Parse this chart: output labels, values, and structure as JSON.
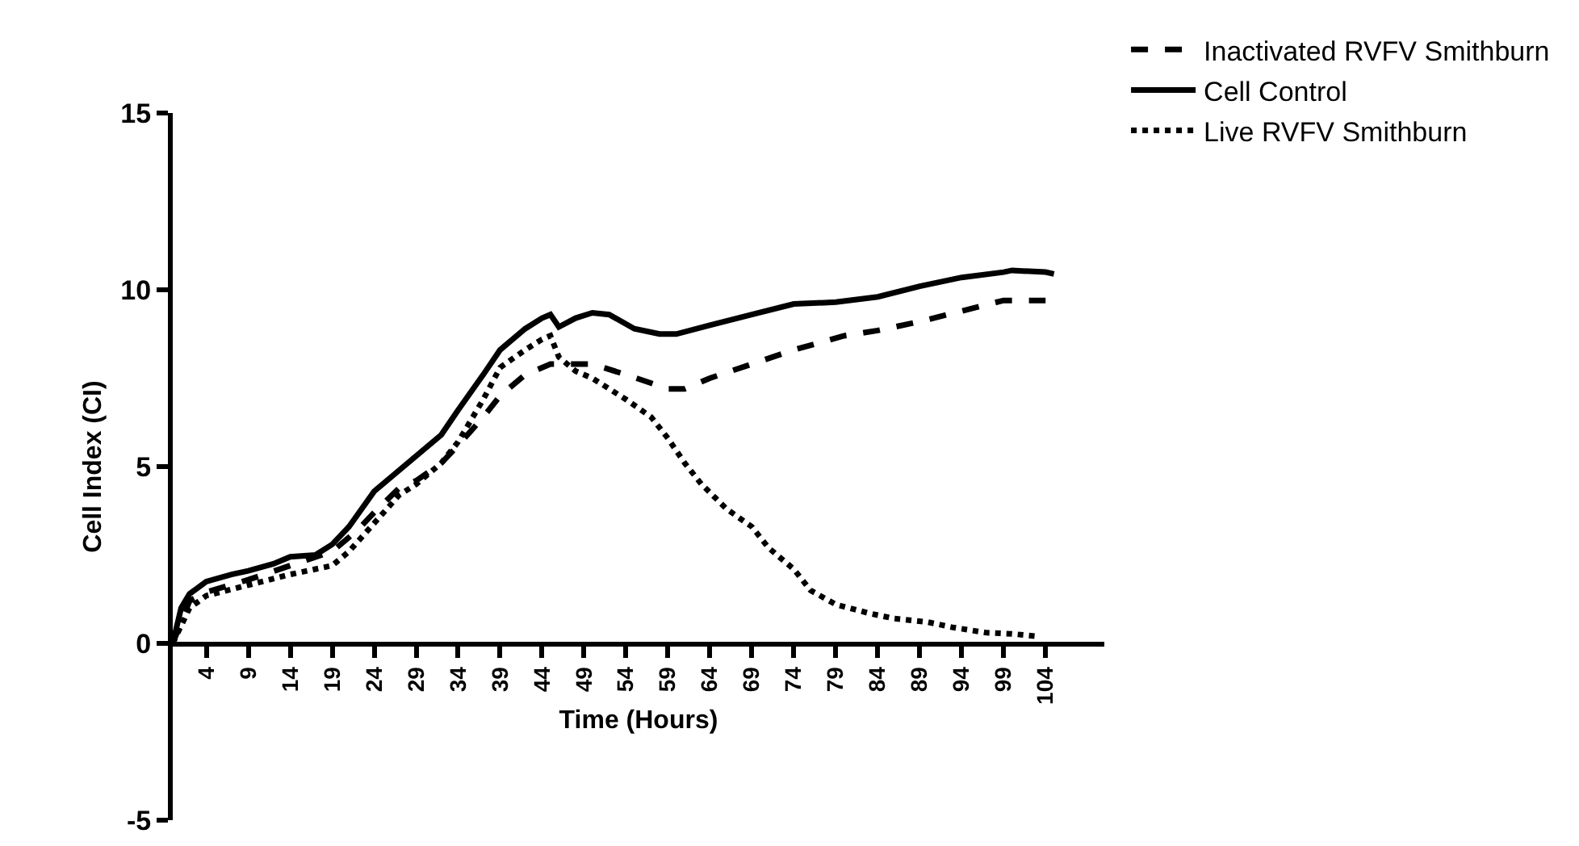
{
  "chart_data": {
    "type": "line",
    "xlabel": "Time (Hours)",
    "ylabel": "Cell Index (CI)",
    "xlim": [
      0,
      111
    ],
    "ylim": [
      -5,
      15
    ],
    "xticks": [
      4,
      9,
      14,
      19,
      24,
      29,
      34,
      39,
      44,
      49,
      54,
      59,
      64,
      69,
      74,
      79,
      84,
      89,
      94,
      99,
      104
    ],
    "yticks": [
      -5,
      0,
      5,
      10,
      15
    ],
    "grid": false,
    "legend": "top right",
    "marker": "none",
    "series": [
      {
        "name": "Inactivated RVFV Smithburn",
        "color": "#000000",
        "line_style": "dashed",
        "x": [
          0,
          2,
          4,
          9,
          14,
          19,
          22,
          24,
          27,
          29,
          32,
          34,
          37,
          39,
          42,
          45,
          47,
          50,
          54,
          59,
          61,
          64,
          69,
          74,
          80,
          84,
          89,
          94,
          99,
          104
        ],
        "values": [
          0,
          1.2,
          1.45,
          1.8,
          2.2,
          2.6,
          3.2,
          3.7,
          4.4,
          4.6,
          5.1,
          5.6,
          6.4,
          7.0,
          7.6,
          7.9,
          7.9,
          7.9,
          7.6,
          7.2,
          7.2,
          7.5,
          7.9,
          8.3,
          8.7,
          8.85,
          9.1,
          9.4,
          9.7,
          9.7
        ]
      },
      {
        "name": "Cell Control",
        "color": "#000000",
        "line_style": "solid",
        "x": [
          0,
          1,
          2,
          4,
          7,
          9,
          12,
          14,
          17,
          19,
          21,
          24,
          27,
          29,
          32,
          34,
          37,
          39,
          42,
          44,
          45,
          46,
          48,
          50,
          52,
          55,
          58,
          60,
          64,
          69,
          74,
          79,
          84,
          89,
          94,
          99,
          100,
          104,
          105
        ],
        "values": [
          0,
          1.0,
          1.4,
          1.75,
          1.95,
          2.05,
          2.25,
          2.45,
          2.5,
          2.8,
          3.3,
          4.3,
          4.9,
          5.3,
          5.9,
          6.6,
          7.6,
          8.3,
          8.9,
          9.2,
          9.3,
          8.95,
          9.2,
          9.35,
          9.3,
          8.9,
          8.75,
          8.75,
          9.0,
          9.3,
          9.6,
          9.65,
          9.8,
          10.1,
          10.35,
          10.5,
          10.55,
          10.5,
          10.45
        ]
      },
      {
        "name": "Live RVFV Smithburn",
        "color": "#000000",
        "line_style": "dotted",
        "x": [
          0,
          2,
          4,
          9,
          14,
          19,
          21,
          24,
          27,
          29,
          32,
          34,
          37,
          39,
          42,
          44,
          45,
          46,
          48,
          50,
          54,
          57,
          59,
          61,
          63,
          66,
          69,
          71,
          74,
          76,
          79,
          83,
          86,
          90,
          93,
          97,
          100,
          103
        ],
        "values": [
          0,
          1.0,
          1.35,
          1.65,
          1.95,
          2.2,
          2.6,
          3.4,
          4.2,
          4.5,
          5.1,
          5.7,
          6.9,
          7.8,
          8.3,
          8.6,
          8.7,
          8.1,
          7.7,
          7.5,
          6.9,
          6.4,
          5.8,
          5.1,
          4.5,
          3.8,
          3.3,
          2.7,
          2.1,
          1.5,
          1.1,
          0.85,
          0.7,
          0.6,
          0.45,
          0.3,
          0.27,
          0.2
        ]
      }
    ]
  }
}
